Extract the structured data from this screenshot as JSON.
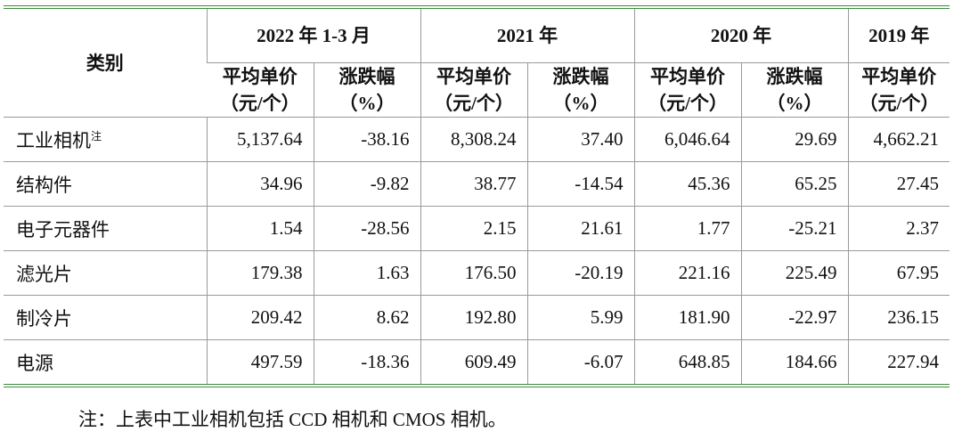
{
  "table": {
    "corner": "类别",
    "periods": [
      "2022 年 1-3 月",
      "2021 年",
      "2020 年",
      "2019 年"
    ],
    "price_header": [
      "平均单价",
      "（元/个）"
    ],
    "change_header": [
      "涨跌幅",
      "（%）"
    ],
    "rows": [
      {
        "label": "工业相机",
        "note": "注",
        "cells": [
          "5,137.64",
          "-38.16",
          "8,308.24",
          "37.40",
          "6,046.64",
          "29.69",
          "4,662.21"
        ]
      },
      {
        "label": "结构件",
        "cells": [
          "34.96",
          "-9.82",
          "38.77",
          "-14.54",
          "45.36",
          "65.25",
          "27.45"
        ]
      },
      {
        "label": "电子元器件",
        "cells": [
          "1.54",
          "-28.56",
          "2.15",
          "21.61",
          "1.77",
          "-25.21",
          "2.37"
        ]
      },
      {
        "label": "滤光片",
        "cells": [
          "179.38",
          "1.63",
          "176.50",
          "-20.19",
          "221.16",
          "225.49",
          "67.95"
        ]
      },
      {
        "label": "制冷片",
        "cells": [
          "209.42",
          "8.62",
          "192.80",
          "5.99",
          "181.90",
          "-22.97",
          "236.15"
        ]
      },
      {
        "label": "电源",
        "cells": [
          "497.59",
          "-18.36",
          "609.49",
          "-6.07",
          "648.85",
          "184.66",
          "227.94"
        ]
      }
    ]
  },
  "footnote": "注：上表中工业相机包括 CCD 相机和 CMOS 相机。"
}
